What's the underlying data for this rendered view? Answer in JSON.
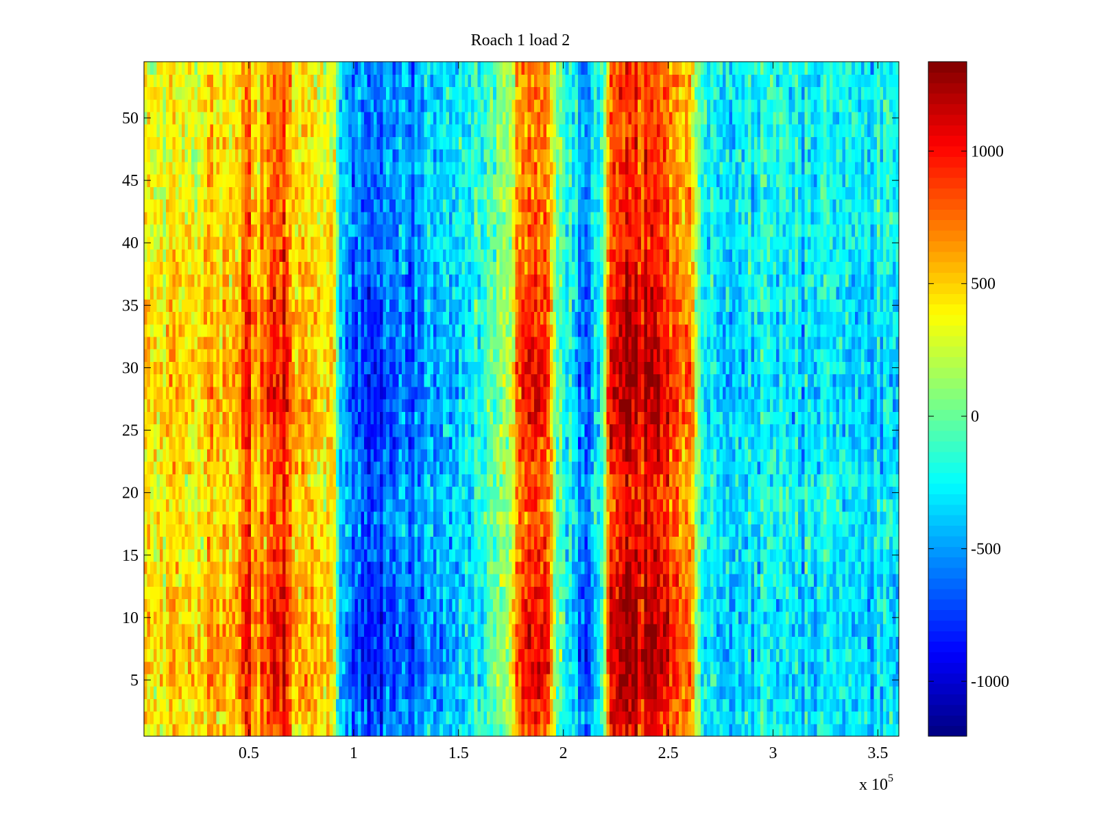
{
  "chart_data": {
    "type": "heatmap",
    "title": "Roach 1 load 2",
    "xlabel": "",
    "ylabel": "",
    "x_exponent_label": "x 10",
    "x_exponent": "5",
    "xlim": [
      0,
      3.6
    ],
    "ylim": [
      0.5,
      54.5
    ],
    "rows": 54,
    "columns": 240,
    "x_ticks": [
      "0.5",
      "1",
      "1.5",
      "2",
      "2.5",
      "3",
      "3.5"
    ],
    "y_ticks": [
      "5",
      "10",
      "15",
      "20",
      "25",
      "30",
      "35",
      "40",
      "45",
      "50"
    ],
    "colormap": "jet",
    "clim": [
      -1207,
      1337
    ],
    "colorbar_ticks": [
      "-1000",
      "-500",
      "0",
      "500",
      "1000"
    ],
    "column_profile": {
      "x": [
        0,
        0.3,
        0.45,
        0.5,
        0.52,
        0.58,
        0.62,
        0.68,
        0.72,
        0.78,
        0.85,
        0.9,
        0.93,
        1.0,
        1.1,
        1.2,
        1.3,
        1.45,
        1.55,
        1.65,
        1.75,
        1.8,
        1.85,
        1.93,
        1.97,
        2.02,
        2.08,
        2.12,
        2.18,
        2.22,
        2.26,
        2.35,
        2.45,
        2.55,
        2.62,
        2.66,
        2.75,
        3.0,
        3.3,
        3.6
      ],
      "mean": [
        420,
        480,
        560,
        900,
        650,
        700,
        880,
        900,
        520,
        600,
        500,
        350,
        -250,
        -650,
        -700,
        -600,
        -550,
        -420,
        -300,
        -60,
        150,
        850,
        950,
        820,
        -50,
        -150,
        -600,
        -600,
        -300,
        950,
        1050,
        1100,
        1000,
        800,
        500,
        -250,
        -300,
        -250,
        -280,
        -300
      ]
    },
    "row_gain": {
      "row": [
        1,
        5,
        8,
        12,
        16,
        20,
        24,
        28,
        32,
        36,
        40,
        46,
        54
      ],
      "gain": [
        0.95,
        1.15,
        1.2,
        1.1,
        0.95,
        0.9,
        1.05,
        1.15,
        1.1,
        1.0,
        0.9,
        0.85,
        0.8
      ]
    },
    "noise_amplitude": 260,
    "noise_seed": 7
  }
}
